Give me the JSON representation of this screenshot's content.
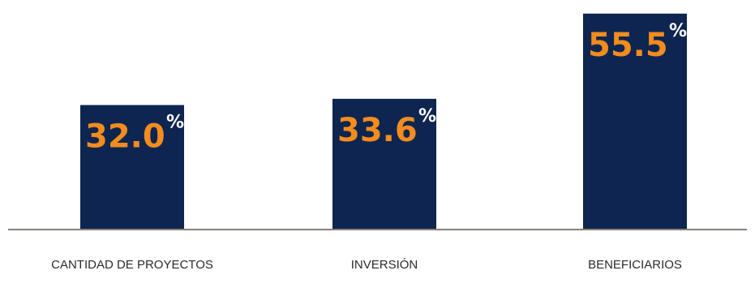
{
  "chart_data": {
    "type": "bar",
    "categories": [
      "CANTIDAD DE PROYECTOS",
      "INVERSIÓN",
      "BENEFICIARIOS"
    ],
    "values": [
      32.0,
      33.6,
      55.5
    ],
    "value_labels": [
      "32.0",
      "33.6",
      "55.5"
    ],
    "unit": "%",
    "ylim": [
      0,
      59
    ],
    "grid": false,
    "legend": "none",
    "colors": {
      "bar": "#0d2550",
      "value_text": "#f28c1e",
      "unit_text": "#ffffff",
      "baseline": "#8a8076",
      "category_text": "#2b2b2b"
    }
  }
}
